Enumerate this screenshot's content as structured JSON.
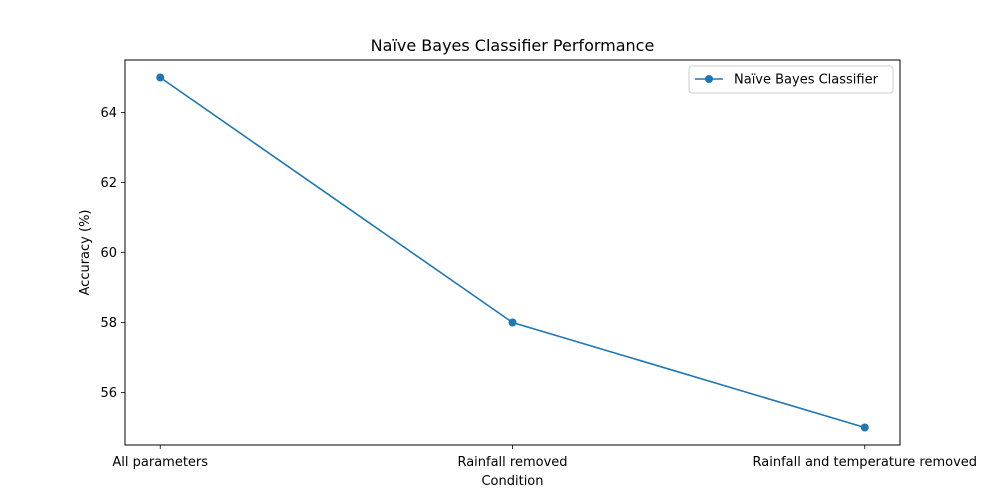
{
  "chart_data": {
    "type": "line",
    "title": "Naïve Bayes Classifier Performance",
    "xlabel": "Condition",
    "ylabel": "Accuracy (%)",
    "categories": [
      "All parameters",
      "Rainfall removed",
      "Rainfall and temperature removed"
    ],
    "series": [
      {
        "name": "Naïve Bayes Classifier",
        "values": [
          65,
          58,
          55
        ],
        "color": "#1f77b4",
        "marker": "circle"
      }
    ],
    "ylim": [
      54.5,
      65.5
    ],
    "yticks": [
      56,
      58,
      60,
      62,
      64
    ],
    "grid": false,
    "legend_position": "top-right"
  }
}
